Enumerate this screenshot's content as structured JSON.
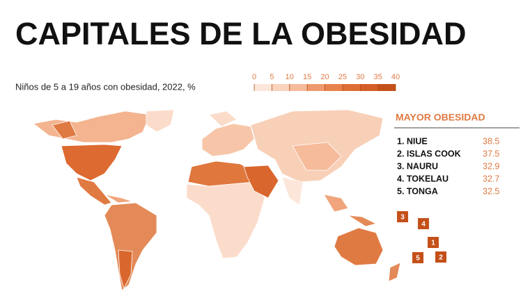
{
  "header": {
    "title": "CAPITALES DE LA OBESIDAD"
  },
  "legend": {
    "label": "Niños de 5 a 19 años con obesidad, 2022, %",
    "ticks": [
      0,
      5,
      10,
      15,
      20,
      25,
      30,
      35,
      40
    ],
    "colors": [
      "#fce6da",
      "#f9d3bd",
      "#f5bb9b",
      "#ee9a6c",
      "#e8824d",
      "#df6e36",
      "#d45f26",
      "#c4501a"
    ]
  },
  "ranking": {
    "title": "MAYOR OBESIDAD",
    "rows": [
      {
        "name": "1. NIUE",
        "value": 38.5
      },
      {
        "name": "2. ISLAS COOK",
        "value": 37.5
      },
      {
        "name": "3. NAURU",
        "value": 32.9
      },
      {
        "name": "4. TOKELAU",
        "value": 32.7
      },
      {
        "name": "5. TONGA",
        "value": 32.5
      }
    ]
  },
  "markers": [
    "1",
    "2",
    "3",
    "4",
    "5"
  ]
}
